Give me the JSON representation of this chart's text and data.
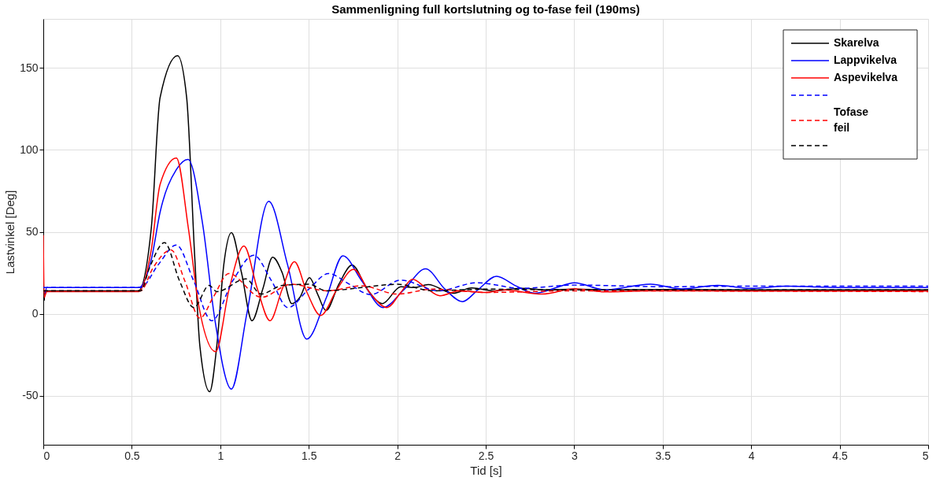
{
  "chart_data": {
    "type": "line",
    "title": "Sammenligning full kortslutning og to-fase feil (190ms)",
    "xlabel": "Tid [s]",
    "ylabel": "Lastvinkel [Deg]",
    "xlim": [
      0,
      5
    ],
    "xticks": [
      0,
      0.5,
      1,
      1.5,
      2,
      2.5,
      3,
      3.5,
      4,
      4.5,
      5
    ],
    "ylim": [
      -80,
      180
    ],
    "yticks": [
      -50,
      0,
      50,
      100,
      150
    ],
    "grid": true,
    "legend": "top right",
    "marker": "none",
    "series": [
      {
        "name": "Skarelva",
        "color": "#000000",
        "line_style": "solid",
        "x": [
          0.005,
          0.01,
          0.02,
          0.5,
          0.537,
          0.61,
          0.66,
          0.759,
          0.81,
          0.855,
          0.885,
          0.94,
          0.98,
          1.02,
          1.063,
          1.12,
          1.179,
          1.24,
          1.296,
          1.35,
          1.404,
          1.45,
          1.504,
          1.55,
          1.597,
          1.67,
          1.745,
          1.83,
          1.916,
          2.02,
          2.1,
          2.175,
          2.316,
          2.42,
          2.55,
          2.7,
          2.85,
          3.0,
          3.2,
          3.5,
          4.0,
          4.5,
          5.0
        ],
        "values": [
          8,
          14,
          14,
          14,
          14,
          52,
          132,
          157.5,
          132,
          36,
          -20,
          -47.6,
          -20,
          30,
          49.5,
          25,
          -4.3,
          15,
          34.5,
          25,
          6.2,
          10,
          22,
          12,
          2,
          18,
          29.7,
          15,
          6.2,
          16.5,
          16,
          17.8,
          12.5,
          15.7,
          14,
          15.5,
          14.5,
          15,
          14.5,
          14.8,
          14.5,
          14.5,
          14.5
        ]
      },
      {
        "name": "Lappvikelva",
        "color": "#0000ff",
        "line_style": "solid",
        "x": [
          0.01,
          0.02,
          0.5,
          0.54,
          0.61,
          0.66,
          0.752,
          0.818,
          0.9,
          0.97,
          1.063,
          1.15,
          1.274,
          1.38,
          1.489,
          1.6,
          1.693,
          1.8,
          1.92,
          2.04,
          2.16,
          2.27,
          2.368,
          2.46,
          2.561,
          2.67,
          2.776,
          2.9,
          3.0,
          3.176,
          3.43,
          3.606,
          3.81,
          4.0,
          4.2,
          4.5,
          5.0
        ],
        "values": [
          12,
          16,
          16,
          16,
          33,
          62,
          88,
          94.2,
          55,
          -4,
          -46,
          0,
          68.6,
          30,
          -15.5,
          10,
          35.4,
          20,
          3.8,
          15,
          27.4,
          15,
          7.4,
          15,
          22.9,
          17,
          12.5,
          16,
          18.9,
          14.6,
          18.1,
          15.2,
          17.3,
          15.5,
          16.8,
          16,
          16
        ]
      },
      {
        "name": "Aspevikelva",
        "color": "#ff0000",
        "line_style": "solid",
        "x": [
          0,
          0.005,
          0.02,
          0.5,
          0.54,
          0.61,
          0.66,
          0.752,
          0.82,
          0.88,
          0.974,
          1.05,
          1.134,
          1.21,
          1.281,
          1.35,
          1.419,
          1.49,
          1.567,
          1.66,
          1.753,
          1.85,
          1.942,
          2.02,
          2.086,
          2.16,
          2.242,
          2.35,
          2.5,
          2.6,
          2.82,
          3.0,
          3.18,
          3.4,
          4.0,
          5.0
        ],
        "values": [
          48,
          10,
          13.5,
          13.5,
          13.5,
          39,
          79,
          95,
          52,
          4,
          -23.2,
          15,
          41.3,
          15,
          -4.3,
          15,
          31.7,
          13,
          -1.1,
          15,
          27,
          12,
          3.8,
          13,
          21,
          16,
          11,
          14,
          13,
          14.5,
          12,
          15.2,
          13.3,
          14,
          13.8,
          13.8
        ]
      },
      {
        "color": "#0000ff",
        "line_style": "dashed",
        "x": [
          0,
          0.5,
          0.55,
          0.65,
          0.752,
          0.85,
          0.952,
          1.07,
          1.189,
          1.29,
          1.382,
          1.5,
          1.612,
          1.73,
          1.849,
          2.02,
          2.233,
          2.45,
          2.7,
          3.0,
          3.5,
          4.0,
          5.0
        ],
        "values": [
          16,
          16,
          16,
          30,
          42,
          20,
          -4.3,
          20,
          35.7,
          20,
          3.7,
          15,
          24.5,
          18,
          11.7,
          20.5,
          14,
          18.9,
          15.5,
          17.5,
          16.5,
          16.8,
          16.8
        ]
      },
      {
        "name": "Tofase feil",
        "color": "#ff0000",
        "line_style": "dashed",
        "x": [
          0,
          0.5,
          0.55,
          0.62,
          0.722,
          0.8,
          0.885,
          0.96,
          1.048,
          1.232,
          1.4,
          1.6,
          1.8,
          2.0,
          2.2,
          2.5,
          3.0,
          5.0
        ],
        "values": [
          14,
          14,
          14,
          28,
          39,
          20,
          -2.7,
          10,
          24.5,
          10,
          18,
          14,
          17,
          12,
          15,
          13,
          14,
          13.5
        ]
      },
      {
        "color": "#000000",
        "line_style": "dashed",
        "x": [
          0,
          0.5,
          0.55,
          0.6,
          0.685,
          0.77,
          0.851,
          0.937,
          0.98,
          1.145,
          1.23,
          1.352,
          1.5,
          1.6,
          1.8,
          2.0,
          2.2,
          2.5,
          3.0,
          5.0
        ],
        "values": [
          14,
          14,
          14,
          28,
          43.4,
          20,
          3.7,
          17.3,
          13.5,
          21.3,
          12,
          17.3,
          18,
          14,
          16,
          18,
          14,
          15,
          14.5,
          14.5
        ]
      }
    ]
  }
}
